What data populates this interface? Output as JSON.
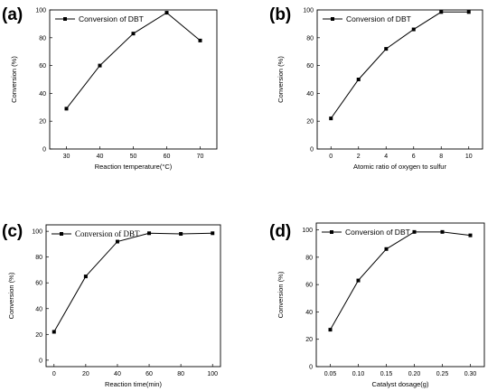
{
  "chart_data": [
    {
      "panel_label": "(a)",
      "type": "line",
      "x": [
        30,
        40,
        50,
        60,
        70
      ],
      "series": [
        {
          "name": "Conversion of DBT",
          "values": [
            29,
            60,
            83,
            98,
            78
          ]
        }
      ],
      "xlabel": "Reaction temperature(°C)",
      "ylabel": "Conversion (%)",
      "xlim": [
        25,
        75
      ],
      "ylim": [
        0,
        100
      ],
      "xticks": [
        30,
        40,
        50,
        60,
        70
      ],
      "xtick_labels": [
        "30",
        "40",
        "50",
        "60",
        "70"
      ],
      "yticks": [
        0,
        20,
        40,
        60,
        80,
        100
      ],
      "ytick_labels": [
        "0",
        "20",
        "40",
        "60",
        "80",
        "100"
      ],
      "legend": "top-left",
      "grid": false,
      "marker": "square",
      "color": "#000000"
    },
    {
      "panel_label": "(b)",
      "type": "line",
      "x": [
        0,
        2,
        4,
        6,
        8,
        10
      ],
      "series": [
        {
          "name": "Conversion of DBT",
          "values": [
            22,
            50,
            72,
            86,
            98.5,
            98.5
          ]
        }
      ],
      "xlabel": "Atomic ratio of oxygen to sulfur",
      "ylabel": "Conversion (%)",
      "xlim": [
        -1,
        11
      ],
      "ylim": [
        0,
        100
      ],
      "xticks": [
        0,
        2,
        4,
        6,
        8,
        10
      ],
      "xtick_labels": [
        "0",
        "2",
        "4",
        "6",
        "8",
        "10"
      ],
      "yticks": [
        0,
        20,
        40,
        60,
        80,
        100
      ],
      "ytick_labels": [
        "0",
        "20",
        "40",
        "60",
        "80",
        "100"
      ],
      "legend": "top-left",
      "grid": false,
      "marker": "square",
      "color": "#000000"
    },
    {
      "panel_label": "(c)",
      "type": "line",
      "x": [
        0,
        20,
        40,
        60,
        80,
        100
      ],
      "series": [
        {
          "name": "Conversion of DBT",
          "values": [
            22,
            65,
            92,
            98.5,
            98,
            98.5
          ]
        }
      ],
      "xlabel": "Reaction time(min)",
      "ylabel": "Conversion (%)",
      "xlim": [
        -5,
        105
      ],
      "ylim": [
        -5,
        105
      ],
      "xticks": [
        0,
        20,
        40,
        60,
        80,
        100
      ],
      "xtick_labels": [
        "0",
        "20",
        "40",
        "60",
        "80",
        "100"
      ],
      "yticks": [
        0,
        20,
        40,
        60,
        80,
        100
      ],
      "ytick_labels": [
        "0",
        "20",
        "40",
        "60",
        "80",
        "100"
      ],
      "legend": "top-left",
      "grid": false,
      "marker": "square",
      "color": "#000000"
    },
    {
      "panel_label": "(d)",
      "type": "line",
      "x": [
        0.05,
        0.1,
        0.15,
        0.2,
        0.25,
        0.3
      ],
      "series": [
        {
          "name": "Conversion of DBT",
          "values": [
            27,
            63,
            86,
            98.5,
            98.5,
            96
          ]
        }
      ],
      "xlabel": "Catalyst dosage(g)",
      "ylabel": "Conversion (%)",
      "xlim": [
        0.025,
        0.325
      ],
      "ylim": [
        0,
        105
      ],
      "xticks": [
        0.05,
        0.1,
        0.15,
        0.2,
        0.25,
        0.3
      ],
      "xtick_labels": [
        "0.05",
        "0.10",
        "0.15",
        "0.20",
        "0.25",
        "0.30"
      ],
      "yticks": [
        0,
        20,
        40,
        60,
        80,
        100
      ],
      "ytick_labels": [
        "0",
        "20",
        "40",
        "60",
        "80",
        "100"
      ],
      "legend": "top-left",
      "grid": false,
      "marker": "square",
      "color": "#000000"
    }
  ]
}
